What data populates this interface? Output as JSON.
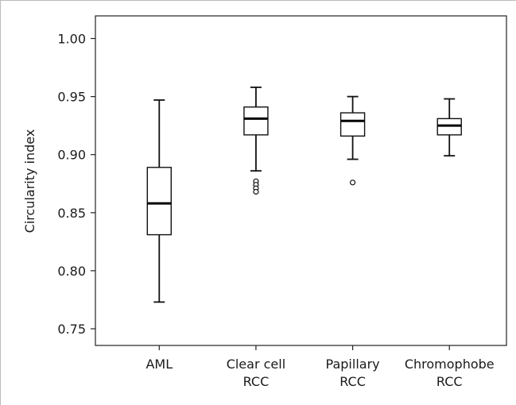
{
  "chart_data": {
    "type": "boxplot",
    "title": "",
    "xlabel": "",
    "ylabel": "Circularity index",
    "ylim": [
      0.75,
      1.0
    ],
    "yticks": [
      "0.75",
      "0.80",
      "0.85",
      "0.90",
      "0.95",
      "1.00"
    ],
    "grid": false,
    "categories": [
      [
        "AML"
      ],
      [
        "Clear cell",
        "RCC"
      ],
      [
        "Papillary",
        "RCC"
      ],
      [
        "Chromophobe",
        "RCC"
      ]
    ],
    "boxes": [
      {
        "whisker_low": 0.773,
        "q1": 0.831,
        "median": 0.858,
        "q3": 0.889,
        "whisker_high": 0.947,
        "outliers": []
      },
      {
        "whisker_low": 0.886,
        "q1": 0.917,
        "median": 0.931,
        "q3": 0.941,
        "whisker_high": 0.958,
        "outliers": [
          0.877,
          0.874,
          0.871,
          0.868
        ]
      },
      {
        "whisker_low": 0.896,
        "q1": 0.916,
        "median": 0.929,
        "q3": 0.936,
        "whisker_high": 0.95,
        "outliers": [
          0.876
        ]
      },
      {
        "whisker_low": 0.899,
        "q1": 0.917,
        "median": 0.925,
        "q3": 0.931,
        "whisker_high": 0.948,
        "outliers": []
      }
    ]
  }
}
